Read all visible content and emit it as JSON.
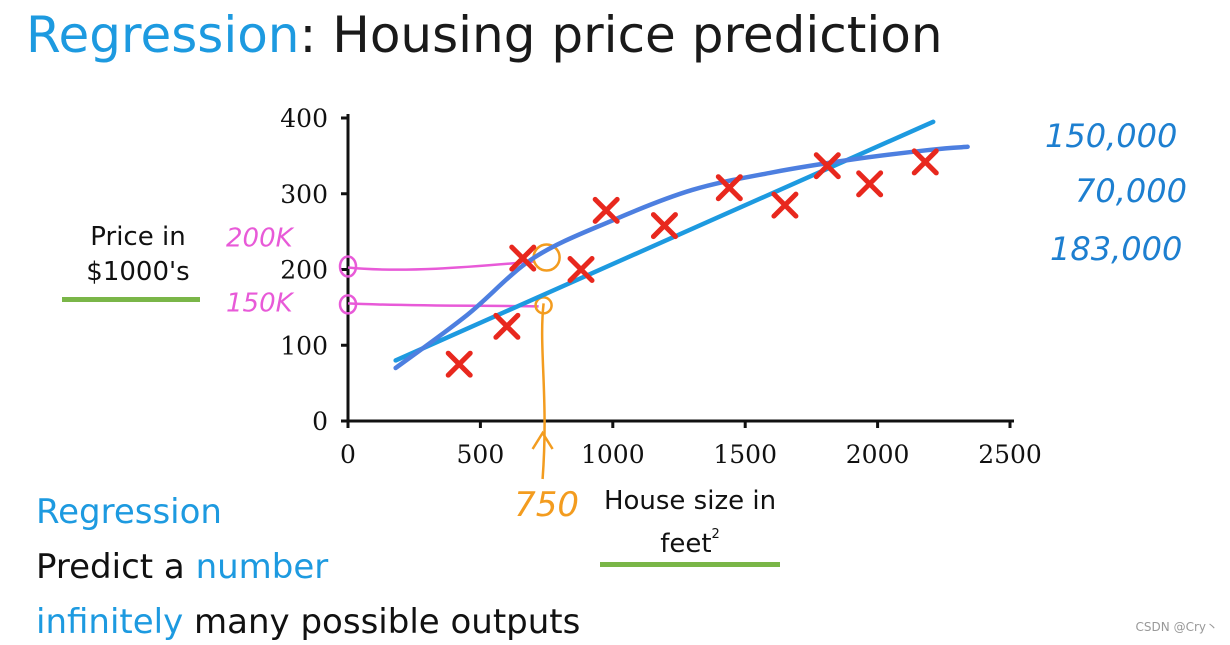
{
  "title": {
    "accent": "Regression",
    "rest": ": Housing price prediction"
  },
  "y_axis_label": "Price in $1000's",
  "x_axis_label": {
    "main": "House size in feet",
    "sup": "2"
  },
  "bottom": {
    "line1": "Regression",
    "line2_prefix": "Predict a ",
    "line2_highlight": "number",
    "line3_highlight": "infinitely",
    "line3_rest": " many possible outputs"
  },
  "annotations": {
    "pink_high": "200K",
    "pink_low": "150K",
    "orange_x": "750",
    "right_values": [
      "150,000",
      "70,000",
      "183,000"
    ]
  },
  "watermark": "CSDN @Cry丶",
  "colors": {
    "accent_blue": "#1d9ae0",
    "points_red": "#e8281e",
    "fit_blue": "#1d9ae0",
    "curve_blue": "#4d7fe0",
    "pink": "#e85ad8",
    "orange": "#f39c1f",
    "underline_green": "#7ab648"
  },
  "chart_data": {
    "type": "scatter",
    "xlim": [
      0,
      2500
    ],
    "ylim": [
      0,
      400
    ],
    "x_ticks": [
      0,
      500,
      1000,
      1500,
      2000,
      2500
    ],
    "y_ticks": [
      0,
      100,
      200,
      300,
      400
    ],
    "points": [
      {
        "x": 420,
        "y": 75
      },
      {
        "x": 600,
        "y": 125
      },
      {
        "x": 660,
        "y": 215
      },
      {
        "x": 880,
        "y": 200
      },
      {
        "x": 975,
        "y": 278
      },
      {
        "x": 1195,
        "y": 258
      },
      {
        "x": 1440,
        "y": 308
      },
      {
        "x": 1650,
        "y": 285
      },
      {
        "x": 1810,
        "y": 337
      },
      {
        "x": 1970,
        "y": 313
      },
      {
        "x": 2180,
        "y": 342
      }
    ],
    "linear_fit": [
      [
        180,
        80
      ],
      [
        2210,
        395
      ]
    ],
    "curve_fit": [
      [
        180,
        70
      ],
      [
        450,
        140
      ],
      [
        700,
        215
      ],
      [
        1000,
        265
      ],
      [
        1300,
        305
      ],
      [
        1600,
        328
      ],
      [
        1900,
        345
      ],
      [
        2200,
        358
      ],
      [
        2340,
        362
      ]
    ],
    "query_x": 750,
    "query_y_line": 150,
    "query_y_curve": 200
  }
}
